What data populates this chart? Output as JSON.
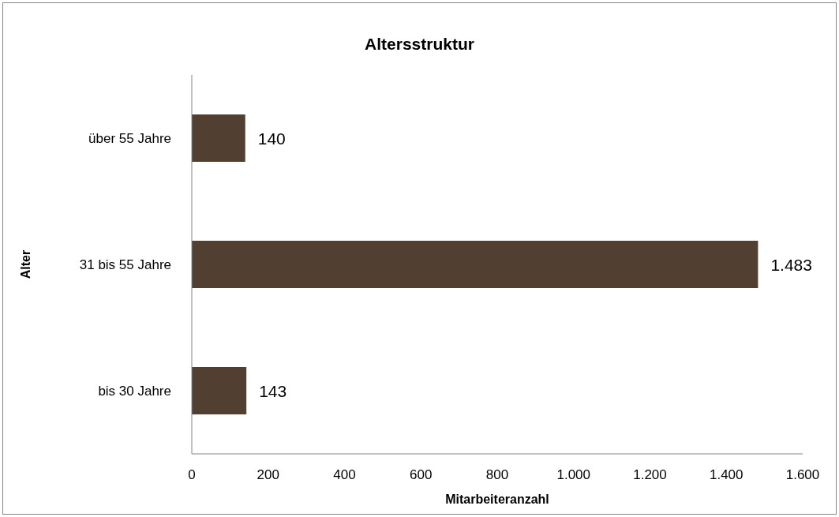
{
  "chart_data": {
    "type": "bar",
    "orientation": "horizontal",
    "title": "Altersstruktur",
    "xlabel": "Mitarbeiteranzahl",
    "ylabel": "Alter",
    "categories": [
      "über 55 Jahre",
      "31 bis 55 Jahre",
      "bis 30 Jahre"
    ],
    "values": [
      140,
      1483,
      143
    ],
    "value_labels": [
      "140",
      "1.483",
      "143"
    ],
    "color": "#513f32",
    "xlim": [
      0,
      1600
    ],
    "xticks": [
      0,
      200,
      400,
      600,
      800,
      {
        "value": 1000,
        "label": "1.000"
      },
      {
        "value": 1200,
        "label": "1.200"
      },
      {
        "value": 1400,
        "label": "1.400"
      },
      {
        "value": 1600,
        "label": "1.600"
      }
    ],
    "grid": false,
    "legend": false
  }
}
